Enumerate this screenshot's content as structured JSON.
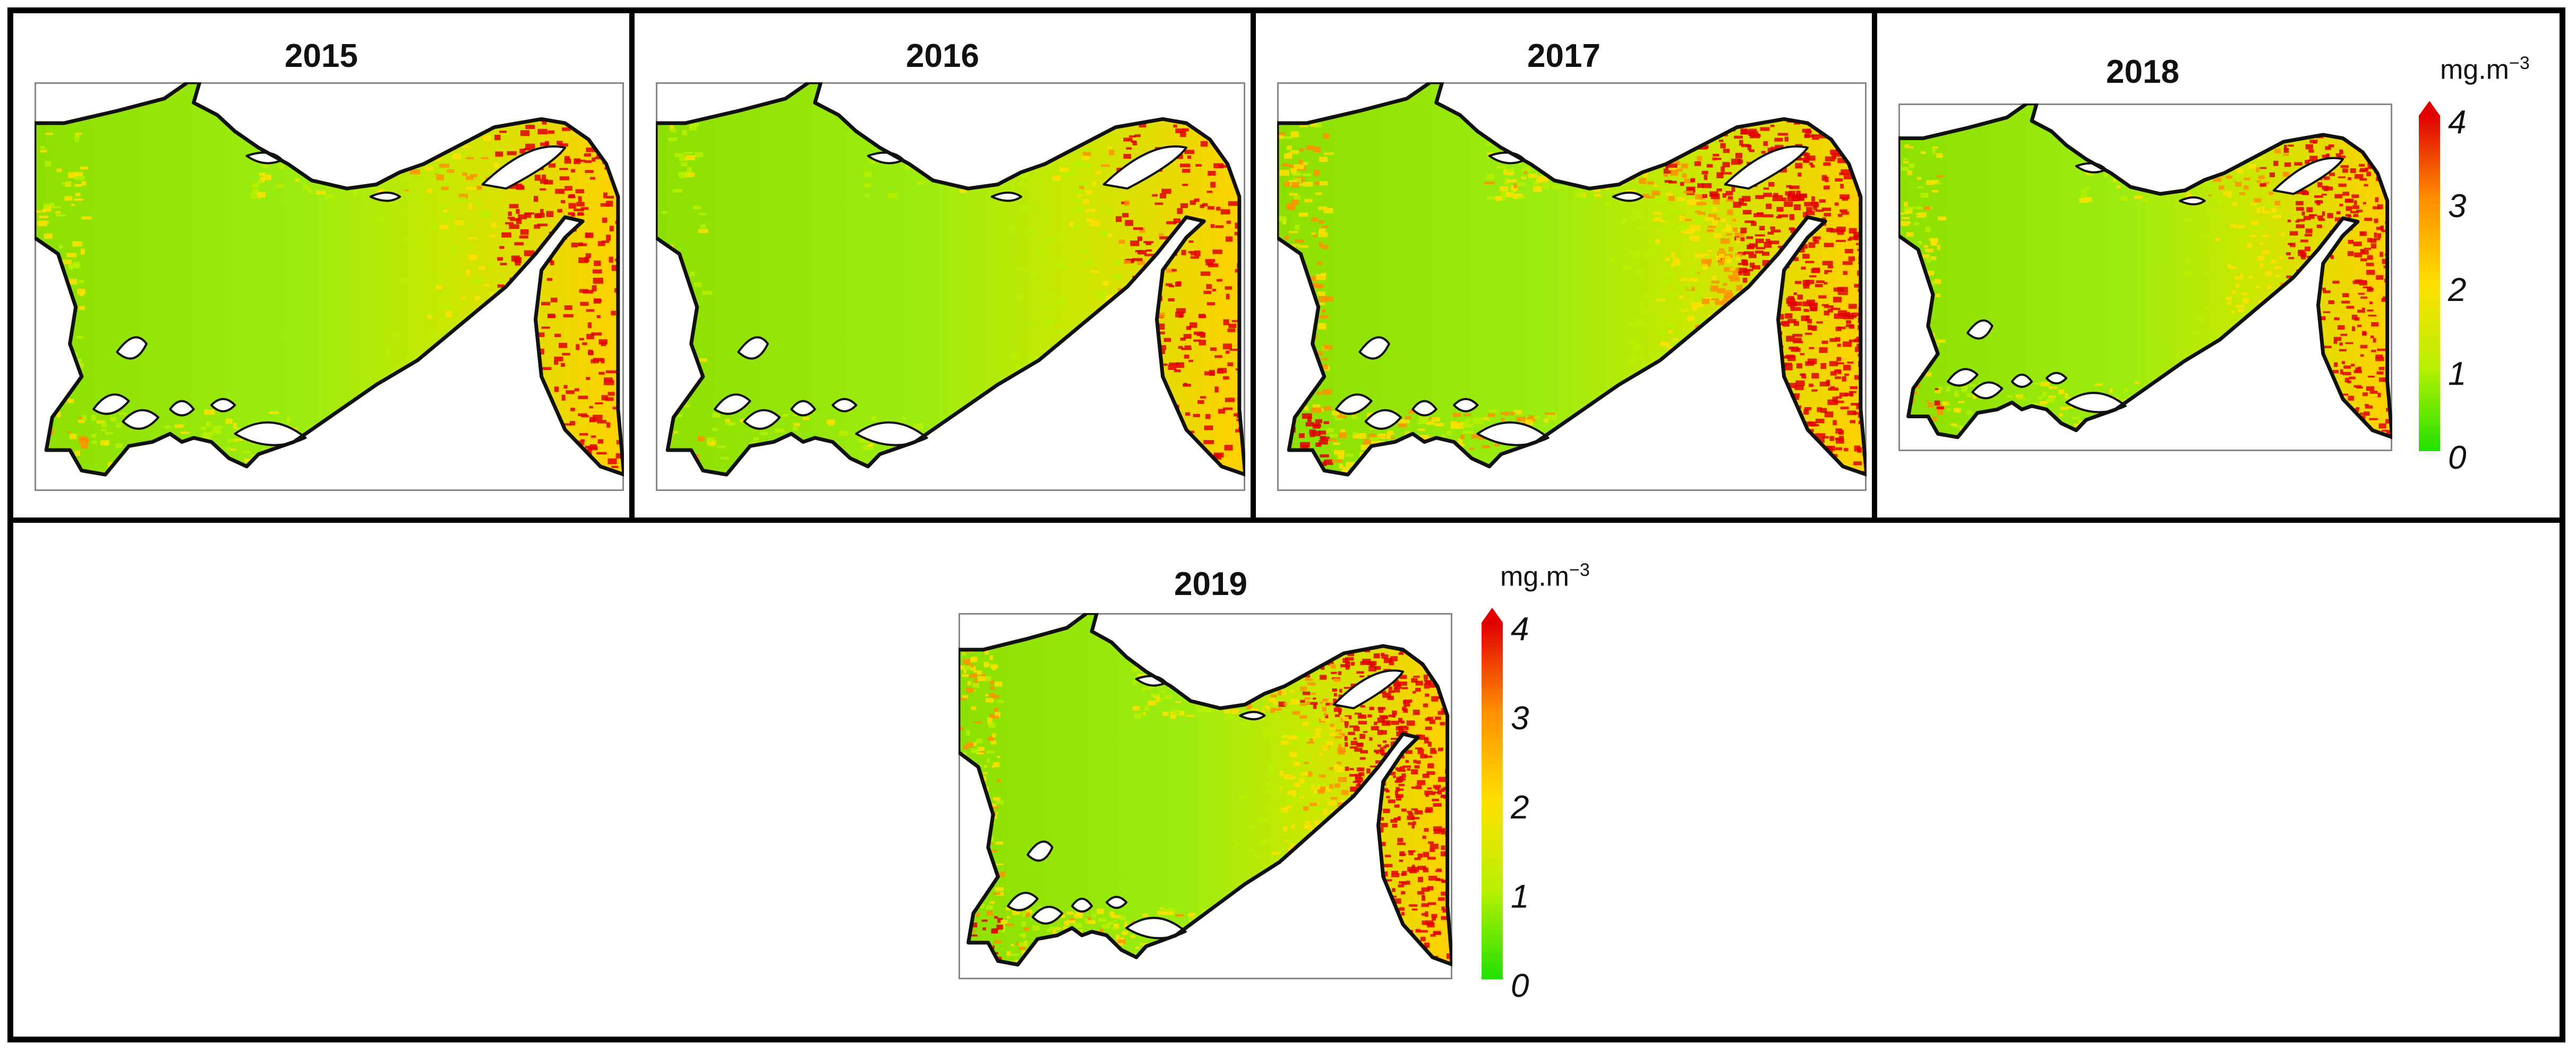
{
  "panels": [
    {
      "year": "2015",
      "intensity": 0.35
    },
    {
      "year": "2016",
      "intensity": 0.2
    },
    {
      "year": "2017",
      "intensity": 0.85
    },
    {
      "year": "2018",
      "intensity": 0.45
    },
    {
      "year": "2019",
      "intensity": 0.7
    }
  ],
  "colorbar": {
    "unit_base": "mg.m",
    "unit_exp": "−3",
    "ticks": [
      "4",
      "3",
      "2",
      "1",
      "0"
    ],
    "colors": [
      "#22e000",
      "#b8f000",
      "#ffe000",
      "#ff9000",
      "#e00000"
    ]
  }
}
